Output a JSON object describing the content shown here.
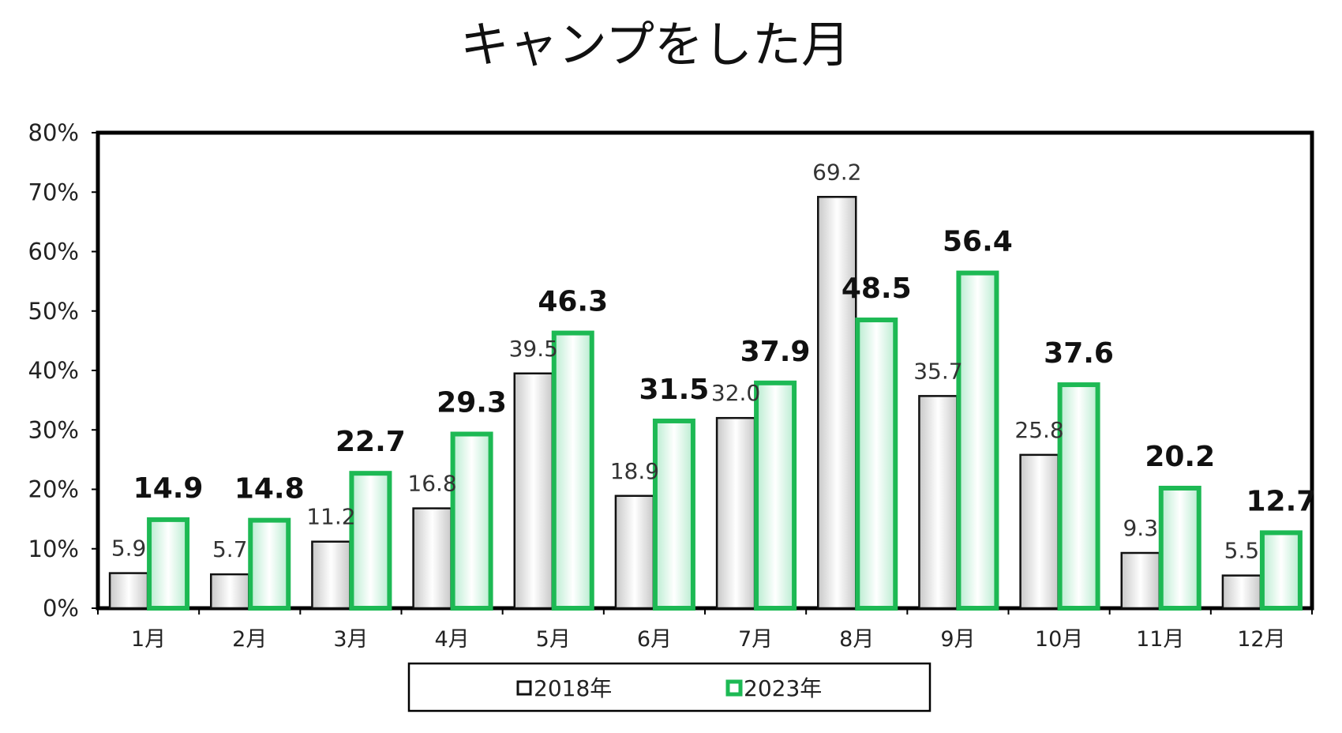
{
  "chart_data": {
    "type": "bar",
    "title": "キャンプをした月",
    "xlabel": "",
    "ylabel": "",
    "ylim": [
      0,
      80
    ],
    "y_tick_values": [
      0,
      10,
      20,
      30,
      40,
      50,
      60,
      70,
      80
    ],
    "y_tick_labels": [
      "0%",
      "10%",
      "20%",
      "30%",
      "40%",
      "50%",
      "60%",
      "70%",
      "80%"
    ],
    "categories": [
      "1月",
      "2月",
      "3月",
      "4月",
      "5月",
      "6月",
      "7月",
      "8月",
      "9月",
      "10月",
      "11月",
      "12月"
    ],
    "series": [
      {
        "name": "2018年",
        "values": [
          5.9,
          5.7,
          11.2,
          16.8,
          39.5,
          18.9,
          32.0,
          69.2,
          35.7,
          25.8,
          9.3,
          5.5
        ],
        "labels": [
          "5.9",
          "5.7",
          "11.2",
          "16.8",
          "39.5",
          "18.9",
          "32.0",
          "69.2",
          "35.7",
          "25.8",
          "9.3",
          "5.5"
        ],
        "color": "#e6e6e6",
        "border": "#111111"
      },
      {
        "name": "2023年",
        "values": [
          14.9,
          14.8,
          22.7,
          29.3,
          46.3,
          31.5,
          37.9,
          48.5,
          56.4,
          37.6,
          20.2,
          12.7
        ],
        "labels": [
          "14.9",
          "14.8",
          "22.7",
          "29.3",
          "46.3",
          "31.5",
          "37.9",
          "48.5",
          "56.4",
          "37.6",
          "20.2",
          "12.7"
        ],
        "color": "#e8f7ee",
        "border": "#1db954"
      }
    ],
    "grid": false,
    "legend_position": "bottom"
  }
}
